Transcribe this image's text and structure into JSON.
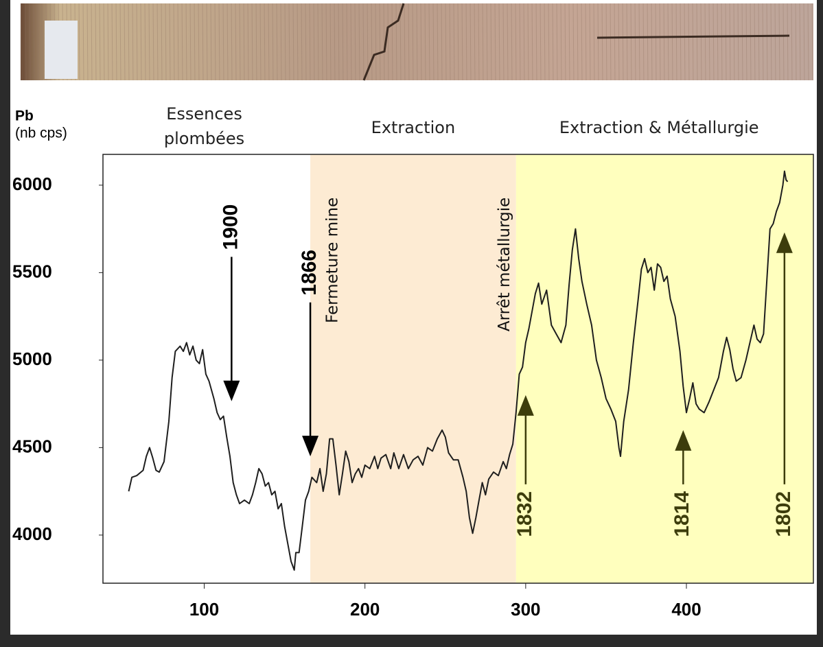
{
  "chart_data": {
    "type": "line",
    "y_label": "Pb",
    "y_unit": "(nb cps)",
    "x": [
      53,
      55,
      58,
      62,
      64,
      66,
      68,
      70,
      72,
      75,
      78,
      80,
      82,
      85,
      87,
      89,
      91,
      93,
      95,
      97,
      99,
      101,
      103,
      106,
      108,
      110,
      112,
      114,
      116,
      118,
      120,
      122,
      125,
      128,
      130,
      132,
      134,
      136,
      138,
      140,
      142,
      144,
      146,
      148,
      150,
      152,
      154,
      156,
      157,
      159,
      161,
      163,
      165,
      167,
      170,
      172,
      174,
      176,
      178,
      180,
      182,
      184,
      186,
      188,
      190,
      192,
      194,
      196,
      198,
      200,
      203,
      206,
      208,
      210,
      213,
      216,
      218,
      221,
      224,
      227,
      230,
      233,
      236,
      239,
      242,
      245,
      248,
      250,
      252,
      255,
      258,
      261,
      263,
      265,
      267,
      269,
      271,
      273,
      275,
      277,
      280,
      283,
      286,
      288,
      290,
      292,
      294,
      296,
      298,
      300,
      302,
      304,
      306,
      308,
      310,
      313,
      316,
      319,
      322,
      325,
      327,
      329,
      331,
      333,
      335,
      338,
      341,
      344,
      347,
      350,
      353,
      356,
      358,
      359,
      361,
      364,
      367,
      370,
      372,
      374,
      376,
      378,
      380,
      382,
      384,
      386,
      388,
      390,
      393,
      396,
      398,
      400,
      402,
      404,
      406,
      408,
      411,
      414,
      417,
      420,
      423,
      425,
      427,
      429,
      431,
      434,
      437,
      440,
      442,
      444,
      446,
      448,
      450,
      452,
      454,
      456,
      458,
      460,
      461,
      462,
      463
    ],
    "series": [
      {
        "color": "#1e1e1e",
        "values": [
          4250,
          4330,
          4340,
          4370,
          4450,
          4500,
          4440,
          4370,
          4360,
          4420,
          4650,
          4900,
          5050,
          5080,
          5050,
          5100,
          5030,
          5080,
          5000,
          4980,
          5060,
          4920,
          4880,
          4780,
          4700,
          4660,
          4680,
          4560,
          4450,
          4300,
          4230,
          4180,
          4200,
          4180,
          4230,
          4300,
          4380,
          4350,
          4280,
          4300,
          4230,
          4250,
          4150,
          4180,
          4050,
          3950,
          3850,
          3800,
          3900,
          3900,
          4050,
          4200,
          4250,
          4330,
          4300,
          4380,
          4250,
          4350,
          4550,
          4550,
          4400,
          4230,
          4350,
          4480,
          4420,
          4300,
          4350,
          4380,
          4330,
          4400,
          4380,
          4450,
          4380,
          4440,
          4460,
          4380,
          4470,
          4380,
          4460,
          4380,
          4430,
          4450,
          4400,
          4500,
          4480,
          4550,
          4600,
          4560,
          4470,
          4430,
          4430,
          4330,
          4250,
          4100,
          4010,
          4100,
          4200,
          4300,
          4230,
          4320,
          4360,
          4340,
          4420,
          4380,
          4460,
          4520,
          4700,
          4920,
          4960,
          5100,
          5180,
          5280,
          5380,
          5440,
          5320,
          5400,
          5200,
          5150,
          5100,
          5200,
          5430,
          5630,
          5750,
          5580,
          5450,
          5320,
          5200,
          5000,
          4900,
          4780,
          4720,
          4650,
          4500,
          4450,
          4650,
          4830,
          5100,
          5350,
          5520,
          5580,
          5500,
          5530,
          5400,
          5550,
          5530,
          5450,
          5480,
          5350,
          5250,
          5050,
          4850,
          4700,
          4780,
          4870,
          4750,
          4720,
          4700,
          4760,
          4830,
          4900,
          5050,
          5130,
          5060,
          4950,
          4880,
          4900,
          5000,
          5120,
          5200,
          5120,
          5100,
          5150,
          5450,
          5750,
          5780,
          5850,
          5900,
          6000,
          6080,
          6030,
          6020
        ]
      }
    ],
    "xlim": [
      37,
      479
    ],
    "ylim": [
      3725,
      6176
    ],
    "xticks": [
      100,
      200,
      300,
      400
    ],
    "yticks": [
      4000,
      4500,
      5000,
      5500,
      6000
    ],
    "spans": [
      {
        "x": [
          166,
          294
        ],
        "color": "#fdebd3"
      },
      {
        "x": [
          294,
          479
        ],
        "color": "#ffffbe"
      }
    ],
    "regions": [
      {
        "lines": [
          "Essences",
          "plombées"
        ],
        "x": 100
      },
      {
        "lines": [
          "Extraction"
        ],
        "x": 230
      },
      {
        "lines": [
          "Extraction & Métallurgie"
        ],
        "x": 383
      }
    ],
    "arrows": [
      {
        "label": "1900",
        "x": 117,
        "y": [
          5590,
          4765
        ],
        "color": "#000000"
      },
      {
        "label": "1866",
        "x": 166,
        "y": [
          5330,
          4450
        ],
        "color": "#000000"
      },
      {
        "label": "1832",
        "x": 300,
        "y": [
          4290,
          4800
        ],
        "color": "#3d3d0c"
      },
      {
        "label": "1814",
        "x": 398,
        "y": [
          4290,
          4600
        ],
        "color": "#3d3d0c"
      },
      {
        "label": "1802",
        "x": 461,
        "y": [
          4290,
          5730
        ],
        "color": "#3d3d0c"
      }
    ],
    "notes": [
      {
        "text": "Fermeture mine",
        "x": 180
      },
      {
        "text": "Arrêt métallurgie",
        "x": 287
      }
    ]
  }
}
